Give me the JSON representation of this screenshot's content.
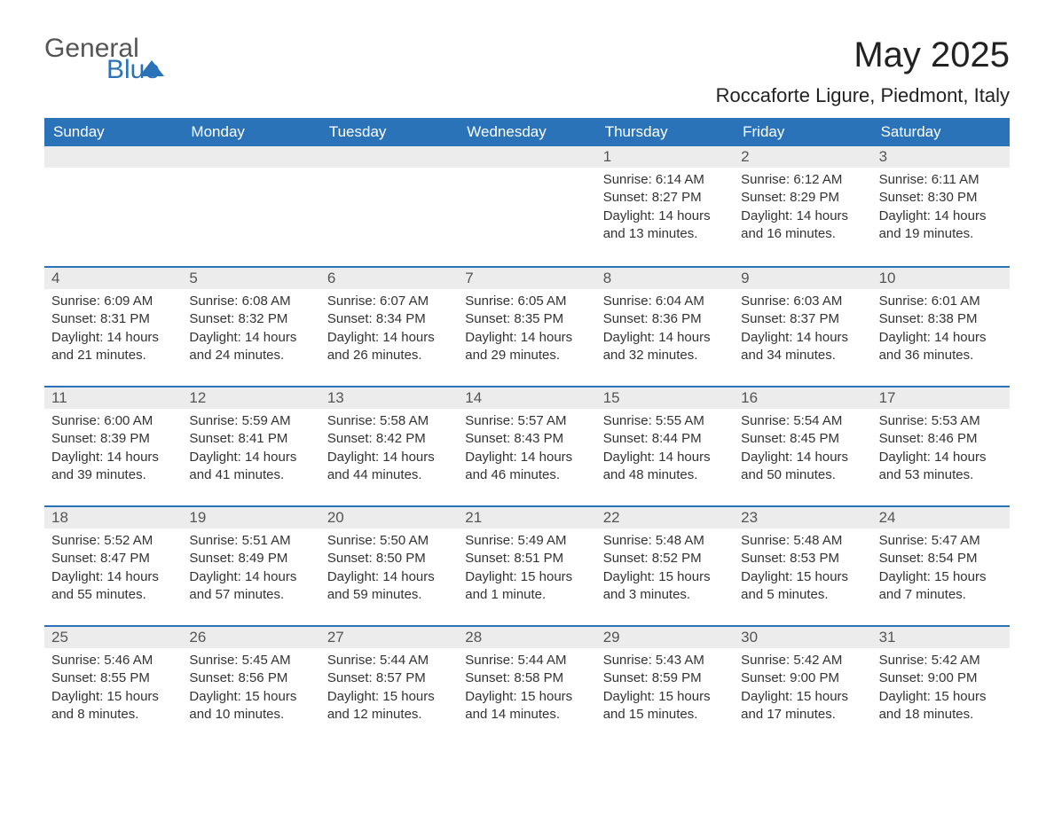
{
  "logo": {
    "text_general": "General",
    "text_blue": "Blue"
  },
  "header": {
    "month_title": "May 2025",
    "location": "Roccaforte Ligure, Piedmont, Italy"
  },
  "colors": {
    "header_bg": "#2a73b8",
    "header_text": "#ffffff",
    "daynum_bg": "#ececec",
    "daynum_text": "#555555",
    "border": "#2a73b8",
    "body_text": "#333333"
  },
  "weekdays": [
    "Sunday",
    "Monday",
    "Tuesday",
    "Wednesday",
    "Thursday",
    "Friday",
    "Saturday"
  ],
  "weeks": [
    [
      {
        "blank": true
      },
      {
        "blank": true
      },
      {
        "blank": true
      },
      {
        "blank": true
      },
      {
        "day": "1",
        "sunrise": "Sunrise: 6:14 AM",
        "sunset": "Sunset: 8:27 PM",
        "daylight": "Daylight: 14 hours and 13 minutes."
      },
      {
        "day": "2",
        "sunrise": "Sunrise: 6:12 AM",
        "sunset": "Sunset: 8:29 PM",
        "daylight": "Daylight: 14 hours and 16 minutes."
      },
      {
        "day": "3",
        "sunrise": "Sunrise: 6:11 AM",
        "sunset": "Sunset: 8:30 PM",
        "daylight": "Daylight: 14 hours and 19 minutes."
      }
    ],
    [
      {
        "day": "4",
        "sunrise": "Sunrise: 6:09 AM",
        "sunset": "Sunset: 8:31 PM",
        "daylight": "Daylight: 14 hours and 21 minutes."
      },
      {
        "day": "5",
        "sunrise": "Sunrise: 6:08 AM",
        "sunset": "Sunset: 8:32 PM",
        "daylight": "Daylight: 14 hours and 24 minutes."
      },
      {
        "day": "6",
        "sunrise": "Sunrise: 6:07 AM",
        "sunset": "Sunset: 8:34 PM",
        "daylight": "Daylight: 14 hours and 26 minutes."
      },
      {
        "day": "7",
        "sunrise": "Sunrise: 6:05 AM",
        "sunset": "Sunset: 8:35 PM",
        "daylight": "Daylight: 14 hours and 29 minutes."
      },
      {
        "day": "8",
        "sunrise": "Sunrise: 6:04 AM",
        "sunset": "Sunset: 8:36 PM",
        "daylight": "Daylight: 14 hours and 32 minutes."
      },
      {
        "day": "9",
        "sunrise": "Sunrise: 6:03 AM",
        "sunset": "Sunset: 8:37 PM",
        "daylight": "Daylight: 14 hours and 34 minutes."
      },
      {
        "day": "10",
        "sunrise": "Sunrise: 6:01 AM",
        "sunset": "Sunset: 8:38 PM",
        "daylight": "Daylight: 14 hours and 36 minutes."
      }
    ],
    [
      {
        "day": "11",
        "sunrise": "Sunrise: 6:00 AM",
        "sunset": "Sunset: 8:39 PM",
        "daylight": "Daylight: 14 hours and 39 minutes."
      },
      {
        "day": "12",
        "sunrise": "Sunrise: 5:59 AM",
        "sunset": "Sunset: 8:41 PM",
        "daylight": "Daylight: 14 hours and 41 minutes."
      },
      {
        "day": "13",
        "sunrise": "Sunrise: 5:58 AM",
        "sunset": "Sunset: 8:42 PM",
        "daylight": "Daylight: 14 hours and 44 minutes."
      },
      {
        "day": "14",
        "sunrise": "Sunrise: 5:57 AM",
        "sunset": "Sunset: 8:43 PM",
        "daylight": "Daylight: 14 hours and 46 minutes."
      },
      {
        "day": "15",
        "sunrise": "Sunrise: 5:55 AM",
        "sunset": "Sunset: 8:44 PM",
        "daylight": "Daylight: 14 hours and 48 minutes."
      },
      {
        "day": "16",
        "sunrise": "Sunrise: 5:54 AM",
        "sunset": "Sunset: 8:45 PM",
        "daylight": "Daylight: 14 hours and 50 minutes."
      },
      {
        "day": "17",
        "sunrise": "Sunrise: 5:53 AM",
        "sunset": "Sunset: 8:46 PM",
        "daylight": "Daylight: 14 hours and 53 minutes."
      }
    ],
    [
      {
        "day": "18",
        "sunrise": "Sunrise: 5:52 AM",
        "sunset": "Sunset: 8:47 PM",
        "daylight": "Daylight: 14 hours and 55 minutes."
      },
      {
        "day": "19",
        "sunrise": "Sunrise: 5:51 AM",
        "sunset": "Sunset: 8:49 PM",
        "daylight": "Daylight: 14 hours and 57 minutes."
      },
      {
        "day": "20",
        "sunrise": "Sunrise: 5:50 AM",
        "sunset": "Sunset: 8:50 PM",
        "daylight": "Daylight: 14 hours and 59 minutes."
      },
      {
        "day": "21",
        "sunrise": "Sunrise: 5:49 AM",
        "sunset": "Sunset: 8:51 PM",
        "daylight": "Daylight: 15 hours and 1 minute."
      },
      {
        "day": "22",
        "sunrise": "Sunrise: 5:48 AM",
        "sunset": "Sunset: 8:52 PM",
        "daylight": "Daylight: 15 hours and 3 minutes."
      },
      {
        "day": "23",
        "sunrise": "Sunrise: 5:48 AM",
        "sunset": "Sunset: 8:53 PM",
        "daylight": "Daylight: 15 hours and 5 minutes."
      },
      {
        "day": "24",
        "sunrise": "Sunrise: 5:47 AM",
        "sunset": "Sunset: 8:54 PM",
        "daylight": "Daylight: 15 hours and 7 minutes."
      }
    ],
    [
      {
        "day": "25",
        "sunrise": "Sunrise: 5:46 AM",
        "sunset": "Sunset: 8:55 PM",
        "daylight": "Daylight: 15 hours and 8 minutes."
      },
      {
        "day": "26",
        "sunrise": "Sunrise: 5:45 AM",
        "sunset": "Sunset: 8:56 PM",
        "daylight": "Daylight: 15 hours and 10 minutes."
      },
      {
        "day": "27",
        "sunrise": "Sunrise: 5:44 AM",
        "sunset": "Sunset: 8:57 PM",
        "daylight": "Daylight: 15 hours and 12 minutes."
      },
      {
        "day": "28",
        "sunrise": "Sunrise: 5:44 AM",
        "sunset": "Sunset: 8:58 PM",
        "daylight": "Daylight: 15 hours and 14 minutes."
      },
      {
        "day": "29",
        "sunrise": "Sunrise: 5:43 AM",
        "sunset": "Sunset: 8:59 PM",
        "daylight": "Daylight: 15 hours and 15 minutes."
      },
      {
        "day": "30",
        "sunrise": "Sunrise: 5:42 AM",
        "sunset": "Sunset: 9:00 PM",
        "daylight": "Daylight: 15 hours and 17 minutes."
      },
      {
        "day": "31",
        "sunrise": "Sunrise: 5:42 AM",
        "sunset": "Sunset: 9:00 PM",
        "daylight": "Daylight: 15 hours and 18 minutes."
      }
    ]
  ]
}
